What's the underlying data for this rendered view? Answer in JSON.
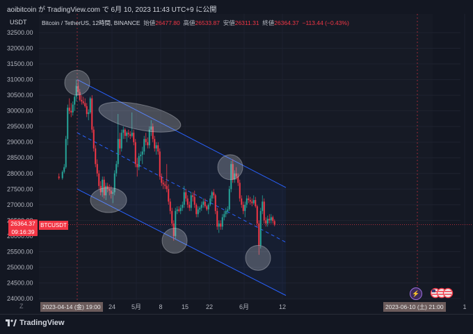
{
  "window": {
    "title": "aoibitcoin が TradingView.com で 6月 10, 2023 11:43 UTC+9 に公開"
  },
  "chart": {
    "symbol_label": "Bitcoin / TetherUS, 12時間, BINANCE",
    "open_label": "始値",
    "open": "26477.80",
    "high_label": "高値",
    "high": "26533.87",
    "low_label": "安値",
    "low": "26311.31",
    "close_label": "終値",
    "close": "26364.37",
    "change": "−113.44 (−0.43%)",
    "currency_label": "USDT",
    "last_price": "26364.37",
    "countdown": "09:16:39",
    "ticker": "BTCUSDT",
    "zoom_button": "Z",
    "price_ticks": [
      "32500.00",
      "32000.00",
      "31500.00",
      "31000.00",
      "30500.00",
      "30000.00",
      "29500.00",
      "29000.00",
      "28500.00",
      "28000.00",
      "27500.00",
      "27000.00",
      "26500.00",
      "26000.00",
      "25500.00",
      "25000.00",
      "24500.00",
      "24000.00"
    ],
    "time_ticks": [
      "24",
      "5月",
      "8",
      "15",
      "22",
      "6月",
      "12",
      "1"
    ],
    "date_tag_left": "2023-04-14 (金)  19:00",
    "date_tag_right": "2023-06-10 (土)  21:00",
    "brand": "TradingView",
    "colors": {
      "up": "#26a69a",
      "down": "#f23645",
      "background": "#131722",
      "channel": "#2962ff"
    }
  },
  "chart_data": {
    "type": "candlestick",
    "title": "Bitcoin / TetherUS, 12時間, BINANCE",
    "ylabel": "USDT",
    "ylim": [
      24000,
      32500
    ],
    "xlim": [
      "2023-04-09",
      "2023-06-13"
    ],
    "channel": {
      "upper": [
        [
          "2023-04-14",
          31000
        ],
        [
          "2023-06-13",
          27550
        ]
      ],
      "mid": [
        [
          "2023-04-14",
          29300
        ],
        [
          "2023-06-13",
          25800
        ]
      ],
      "lower": [
        [
          "2023-04-14",
          27500
        ],
        [
          "2023-06-13",
          24100
        ]
      ]
    },
    "series": [
      {
        "values": [
          [
            "2023-04-09",
            27900,
            28000,
            27800,
            27850
          ],
          [
            "2023-04-10",
            27850,
            28100,
            27800,
            28050
          ],
          [
            "2023-04-10",
            28050,
            28300,
            28000,
            28200
          ],
          [
            "2023-04-11",
            28200,
            29200,
            28150,
            29100
          ],
          [
            "2023-04-11",
            29100,
            30200,
            28900,
            30100
          ],
          [
            "2023-04-12",
            30100,
            30400,
            29900,
            30000
          ],
          [
            "2023-04-12",
            30000,
            30250,
            29800,
            29950
          ],
          [
            "2023-04-13",
            29950,
            30300,
            29850,
            30200
          ],
          [
            "2023-04-13",
            30200,
            30500,
            30000,
            30450
          ],
          [
            "2023-04-14",
            30450,
            31000,
            30300,
            30800
          ],
          [
            "2023-04-14",
            30800,
            31000,
            30500,
            30600
          ],
          [
            "2023-04-15",
            30600,
            30700,
            30300,
            30350
          ],
          [
            "2023-04-15",
            30350,
            30500,
            30200,
            30300
          ],
          [
            "2023-04-16",
            30300,
            30450,
            30200,
            30250
          ],
          [
            "2023-04-16",
            30250,
            30400,
            30100,
            30150
          ],
          [
            "2023-04-17",
            30150,
            30250,
            29800,
            29900
          ],
          [
            "2023-04-17",
            29900,
            30050,
            29700,
            29950
          ],
          [
            "2023-04-18",
            29950,
            30450,
            29900,
            30400
          ],
          [
            "2023-04-18",
            30400,
            30500,
            29300,
            29400
          ],
          [
            "2023-04-19",
            29400,
            29500,
            28700,
            28800
          ],
          [
            "2023-04-19",
            28800,
            28900,
            28200,
            28300
          ],
          [
            "2023-04-20",
            28300,
            28450,
            27900,
            28000
          ],
          [
            "2023-04-20",
            28000,
            28100,
            27500,
            27600
          ],
          [
            "2023-04-21",
            27600,
            27750,
            27300,
            27400
          ],
          [
            "2023-04-21",
            27400,
            27900,
            27250,
            27800
          ],
          [
            "2023-04-22",
            27800,
            27900,
            27200,
            27300
          ],
          [
            "2023-04-22",
            27300,
            27700,
            27150,
            27600
          ],
          [
            "2023-04-23",
            27600,
            27700,
            27400,
            27500
          ],
          [
            "2023-04-23",
            27500,
            27650,
            27300,
            27450
          ],
          [
            "2023-04-24",
            27450,
            27600,
            27200,
            27350
          ],
          [
            "2023-04-24",
            27350,
            27500,
            27050,
            27400
          ],
          [
            "2023-04-25",
            27400,
            28100,
            27300,
            28000
          ],
          [
            "2023-04-25",
            28000,
            28400,
            27900,
            28300
          ],
          [
            "2023-04-26",
            28300,
            29900,
            28200,
            29100
          ],
          [
            "2023-04-26",
            29100,
            29300,
            28600,
            28800
          ],
          [
            "2023-04-27",
            28800,
            29400,
            28700,
            29300
          ],
          [
            "2023-04-27",
            29300,
            29500,
            29100,
            29400
          ],
          [
            "2023-04-28",
            29400,
            29450,
            29100,
            29200
          ],
          [
            "2023-04-28",
            29200,
            29350,
            29000,
            29300
          ],
          [
            "2023-04-29",
            29300,
            29400,
            29150,
            29250
          ],
          [
            "2023-04-29",
            29250,
            29350,
            29100,
            29200
          ],
          [
            "2023-04-30",
            29200,
            29950,
            29150,
            29300
          ],
          [
            "2023-04-30",
            29300,
            29400,
            28900,
            29000
          ],
          [
            "2023-05-01",
            29000,
            29100,
            28200,
            28300
          ],
          [
            "2023-05-01",
            28300,
            28500,
            27900,
            28200
          ],
          [
            "2023-05-02",
            28200,
            28650,
            28100,
            28550
          ],
          [
            "2023-05-02",
            28550,
            28700,
            28400,
            28600
          ],
          [
            "2023-05-03",
            28600,
            28850,
            28300,
            28700
          ],
          [
            "2023-05-03",
            28700,
            29200,
            28600,
            29100
          ],
          [
            "2023-05-04",
            29100,
            29300,
            28900,
            29000
          ],
          [
            "2023-05-04",
            29000,
            29150,
            28800,
            28900
          ],
          [
            "2023-05-05",
            28900,
            29500,
            28800,
            29400
          ],
          [
            "2023-05-05",
            29400,
            29700,
            29200,
            29500
          ],
          [
            "2023-05-06",
            29500,
            29600,
            29000,
            29100
          ],
          [
            "2023-05-06",
            29100,
            29200,
            28700,
            28800
          ],
          [
            "2023-05-07",
            28800,
            29000,
            28600,
            28900
          ],
          [
            "2023-05-07",
            28900,
            29000,
            28600,
            28700
          ],
          [
            "2023-05-08",
            28700,
            28800,
            27800,
            27900
          ],
          [
            "2023-05-08",
            27900,
            28000,
            27600,
            27700
          ],
          [
            "2023-05-09",
            27700,
            27800,
            27500,
            27650
          ],
          [
            "2023-05-09",
            27650,
            27750,
            27500,
            27600
          ],
          [
            "2023-05-10",
            27600,
            28300,
            27400,
            27500
          ],
          [
            "2023-05-10",
            27500,
            27650,
            27000,
            27100
          ],
          [
            "2023-05-11",
            27100,
            27200,
            26700,
            26800
          ],
          [
            "2023-05-11",
            26800,
            26900,
            26300,
            26400
          ],
          [
            "2023-05-12",
            26400,
            26500,
            25850,
            26000
          ],
          [
            "2023-05-12",
            26000,
            26900,
            25900,
            26800
          ],
          [
            "2023-05-13",
            26800,
            26950,
            26700,
            26850
          ],
          [
            "2023-05-13",
            26850,
            26950,
            26750,
            26800
          ],
          [
            "2023-05-14",
            26800,
            27000,
            26700,
            26900
          ],
          [
            "2023-05-14",
            26900,
            27100,
            26800,
            27000
          ],
          [
            "2023-05-15",
            27000,
            27600,
            26900,
            27400
          ],
          [
            "2023-05-15",
            27400,
            27500,
            27100,
            27200
          ],
          [
            "2023-05-16",
            27200,
            27300,
            26900,
            27000
          ],
          [
            "2023-05-16",
            27000,
            27100,
            26800,
            26900
          ],
          [
            "2023-05-17",
            26900,
            27400,
            26800,
            27300
          ],
          [
            "2023-05-17",
            27300,
            27400,
            27100,
            27250
          ],
          [
            "2023-05-18",
            27250,
            27450,
            26900,
            27000
          ],
          [
            "2023-05-18",
            27000,
            27050,
            26600,
            26700
          ],
          [
            "2023-05-19",
            26700,
            26950,
            26600,
            26850
          ],
          [
            "2023-05-19",
            26850,
            26950,
            26750,
            26900
          ],
          [
            "2023-05-20",
            26900,
            27100,
            26800,
            27000
          ],
          [
            "2023-05-20",
            27000,
            27200,
            26900,
            27100
          ],
          [
            "2023-05-21",
            27100,
            27200,
            26900,
            26950
          ],
          [
            "2023-05-21",
            26950,
            27000,
            26800,
            26850
          ],
          [
            "2023-05-22",
            26850,
            27050,
            26700,
            27000
          ],
          [
            "2023-05-22",
            27000,
            27300,
            26950,
            27200
          ],
          [
            "2023-05-23",
            27200,
            27450,
            27100,
            27400
          ],
          [
            "2023-05-23",
            27400,
            27500,
            27200,
            27300
          ],
          [
            "2023-05-24",
            27300,
            27350,
            26700,
            26800
          ],
          [
            "2023-05-24",
            26800,
            26900,
            26200,
            26300
          ],
          [
            "2023-05-25",
            26300,
            26500,
            26100,
            26400
          ],
          [
            "2023-05-25",
            26400,
            26500,
            26200,
            26300
          ],
          [
            "2023-05-26",
            26300,
            26700,
            26200,
            26600
          ],
          [
            "2023-05-26",
            26600,
            26800,
            26500,
            26700
          ],
          [
            "2023-05-27",
            26700,
            26900,
            26600,
            26800
          ],
          [
            "2023-05-27",
            26800,
            26950,
            26700,
            26850
          ],
          [
            "2023-05-28",
            26850,
            27600,
            26800,
            27500
          ],
          [
            "2023-05-28",
            27500,
            28400,
            27400,
            28300
          ],
          [
            "2023-05-29",
            28300,
            28450,
            27700,
            27800
          ],
          [
            "2023-05-29",
            27800,
            28100,
            27700,
            28000
          ],
          [
            "2023-05-30",
            28000,
            28200,
            27800,
            27900
          ],
          [
            "2023-05-30",
            27900,
            28000,
            27600,
            27700
          ],
          [
            "2023-05-31",
            27700,
            27800,
            27100,
            27200
          ],
          [
            "2023-05-31",
            27200,
            27300,
            26900,
            27000
          ],
          [
            "2023-06-01",
            27000,
            27100,
            26700,
            26800
          ],
          [
            "2023-06-01",
            26800,
            27100,
            26600,
            27000
          ],
          [
            "2023-06-02",
            27000,
            27300,
            26900,
            27200
          ],
          [
            "2023-06-02",
            27200,
            27300,
            27050,
            27150
          ],
          [
            "2023-06-03",
            27150,
            27250,
            27000,
            27100
          ],
          [
            "2023-06-03",
            27100,
            27200,
            26950,
            27050
          ],
          [
            "2023-06-04",
            27050,
            27300,
            27000,
            27150
          ],
          [
            "2023-06-04",
            27150,
            27250,
            26900,
            26950
          ],
          [
            "2023-06-05",
            26950,
            27000,
            26300,
            26400
          ],
          [
            "2023-06-05",
            26400,
            26500,
            25400,
            25700
          ],
          [
            "2023-06-06",
            25700,
            26900,
            25600,
            26800
          ],
          [
            "2023-06-06",
            26800,
            27300,
            26700,
            27100
          ],
          [
            "2023-06-07",
            27100,
            27200,
            26400,
            26500
          ],
          [
            "2023-06-07",
            26500,
            26600,
            26300,
            26400
          ],
          [
            "2023-06-08",
            26400,
            26650,
            26300,
            26550
          ],
          [
            "2023-06-08",
            26550,
            26700,
            26400,
            26500
          ],
          [
            "2023-06-09",
            26500,
            26700,
            26400,
            26600
          ],
          [
            "2023-06-09",
            26600,
            26650,
            26400,
            26480
          ],
          [
            "2023-06-10",
            26477.8,
            26533.87,
            26311.31,
            26364.37
          ]
        ]
      }
    ]
  }
}
